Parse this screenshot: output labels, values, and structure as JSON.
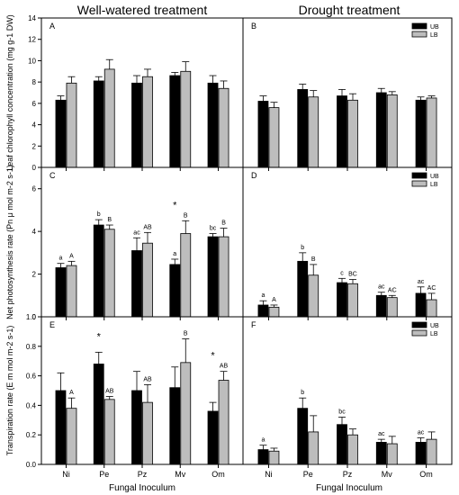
{
  "headings": {
    "left": "Well-watered treatment",
    "right": "Drought treatment"
  },
  "x_label": "Fungal Inoculum",
  "legend": [
    {
      "name": "UB",
      "color": "#000000"
    },
    {
      "name": "LB",
      "color": "#bdbdbd"
    }
  ],
  "colors": {
    "UB": "#000000",
    "LB": "#bdbdbd",
    "axis": "#000000"
  },
  "chart_data": [
    {
      "type": "bar",
      "panel": "A",
      "column": "left",
      "row": 0,
      "title": "",
      "ylabel": "Leaf chlorophyll concentration (mg g-1 DW)",
      "ylim": [
        0,
        14
      ],
      "yticks": [
        0,
        2,
        4,
        6,
        8,
        10,
        12,
        14
      ],
      "categories": [
        "Ni",
        "Pe",
        "Pz",
        "Mv",
        "Om"
      ],
      "show_x_ticklabels": false,
      "legend": "none",
      "series": [
        {
          "name": "UB",
          "values": [
            6.3,
            8.1,
            7.9,
            8.6,
            7.9
          ],
          "errors": [
            0.4,
            0.4,
            0.7,
            0.3,
            0.7
          ],
          "letters": [
            "",
            "",
            "",
            "",
            ""
          ]
        },
        {
          "name": "LB",
          "values": [
            7.9,
            9.2,
            8.5,
            9.0,
            7.4
          ],
          "errors": [
            0.6,
            0.9,
            0.7,
            0.9,
            0.7
          ],
          "letters": [
            "",
            "",
            "",
            "",
            ""
          ]
        }
      ],
      "stars": [
        "",
        "",
        "",
        "",
        ""
      ]
    },
    {
      "type": "bar",
      "panel": "B",
      "column": "right",
      "row": 0,
      "title": "",
      "ylim": [
        0,
        14
      ],
      "categories": [
        "Ni",
        "Pe",
        "Pz",
        "Mv",
        "Om"
      ],
      "show_x_ticklabels": false,
      "legend": "top-right",
      "series": [
        {
          "name": "UB",
          "values": [
            6.2,
            7.3,
            6.7,
            7.0,
            6.3
          ],
          "errors": [
            0.5,
            0.5,
            0.6,
            0.4,
            0.3
          ],
          "letters": [
            "",
            "",
            "",
            "",
            ""
          ]
        },
        {
          "name": "LB",
          "values": [
            5.6,
            6.6,
            6.3,
            6.8,
            6.5
          ],
          "errors": [
            0.5,
            0.6,
            0.6,
            0.3,
            0.2
          ],
          "letters": [
            "",
            "",
            "",
            "",
            ""
          ]
        }
      ],
      "stars": [
        "",
        "",
        "",
        "",
        ""
      ]
    },
    {
      "type": "bar",
      "panel": "C",
      "column": "left",
      "row": 1,
      "title": "",
      "ylabel": "Net photosynthesis rate (Pn μ mol m-2 s-1)",
      "ylim": [
        0,
        7
      ],
      "yticks": [
        0,
        2,
        4,
        6
      ],
      "categories": [
        "Ni",
        "Pe",
        "Pz",
        "Mv",
        "Om"
      ],
      "show_x_ticklabels": false,
      "legend": "none",
      "series": [
        {
          "name": "UB",
          "values": [
            2.3,
            4.3,
            3.1,
            2.45,
            3.75
          ],
          "errors": [
            0.2,
            0.25,
            0.6,
            0.25,
            0.15
          ],
          "letters": [
            "a",
            "b",
            "ac",
            "a",
            "bc"
          ]
        },
        {
          "name": "LB",
          "values": [
            2.4,
            4.1,
            3.45,
            3.9,
            3.75
          ],
          "errors": [
            0.2,
            0.2,
            0.5,
            0.6,
            0.4
          ],
          "letters": [
            "A",
            "B",
            "AB",
            "B",
            "B"
          ]
        }
      ],
      "stars": [
        "",
        "",
        "",
        "*",
        ""
      ]
    },
    {
      "type": "bar",
      "panel": "D",
      "column": "right",
      "row": 1,
      "title": "",
      "ylim": [
        0,
        7
      ],
      "categories": [
        "Ni",
        "Pe",
        "Pz",
        "Mv",
        "Om"
      ],
      "show_x_ticklabels": false,
      "legend": "top-right",
      "series": [
        {
          "name": "UB",
          "values": [
            0.55,
            2.6,
            1.6,
            1.0,
            1.1
          ],
          "errors": [
            0.2,
            0.4,
            0.2,
            0.15,
            0.3
          ],
          "letters": [
            "a",
            "b",
            "c",
            "ac",
            "ac"
          ]
        },
        {
          "name": "LB",
          "values": [
            0.45,
            1.95,
            1.55,
            0.9,
            0.8
          ],
          "errors": [
            0.1,
            0.5,
            0.2,
            0.1,
            0.3
          ],
          "letters": [
            "A",
            "B",
            "BC",
            "AC",
            "AC"
          ]
        }
      ],
      "stars": [
        "",
        "",
        "",
        "",
        ""
      ]
    },
    {
      "type": "bar",
      "panel": "E",
      "column": "left",
      "row": 2,
      "title": "",
      "ylabel": "Transpiration rate (E m mol m-2 s-1)",
      "ylim": [
        0,
        1.0
      ],
      "yticks": [
        0.0,
        0.2,
        0.4,
        0.6,
        0.8,
        1.0
      ],
      "categories": [
        "Ni",
        "Pe",
        "Pz",
        "Mv",
        "Om"
      ],
      "show_x_ticklabels": true,
      "legend": "none",
      "series": [
        {
          "name": "UB",
          "values": [
            0.5,
            0.68,
            0.5,
            0.52,
            0.36
          ],
          "errors": [
            0.12,
            0.08,
            0.13,
            0.14,
            0.06
          ],
          "letters": [
            "",
            "",
            "",
            "",
            ""
          ]
        },
        {
          "name": "LB",
          "values": [
            0.38,
            0.44,
            0.42,
            0.69,
            0.57
          ],
          "errors": [
            0.07,
            0.02,
            0.12,
            0.16,
            0.06
          ],
          "letters": [
            "A",
            "AB",
            "AB",
            "B",
            "AB"
          ]
        }
      ],
      "stars": [
        "",
        "*",
        "",
        "",
        "*"
      ]
    },
    {
      "type": "bar",
      "panel": "F",
      "column": "right",
      "row": 2,
      "title": "",
      "ylim": [
        0,
        1.0
      ],
      "categories": [
        "Ni",
        "Pe",
        "Pz",
        "Mv",
        "Om"
      ],
      "show_x_ticklabels": true,
      "legend": "top-right",
      "series": [
        {
          "name": "UB",
          "values": [
            0.1,
            0.38,
            0.27,
            0.15,
            0.15
          ],
          "errors": [
            0.03,
            0.07,
            0.05,
            0.02,
            0.03
          ],
          "letters": [
            "a",
            "b",
            "bc",
            "ac",
            "ac"
          ]
        },
        {
          "name": "LB",
          "values": [
            0.09,
            0.22,
            0.2,
            0.14,
            0.17
          ],
          "errors": [
            0.02,
            0.11,
            0.04,
            0.05,
            0.05
          ],
          "letters": [
            "",
            "",
            "",
            "",
            ""
          ]
        }
      ],
      "stars": [
        "",
        "",
        "",
        "",
        ""
      ]
    }
  ]
}
